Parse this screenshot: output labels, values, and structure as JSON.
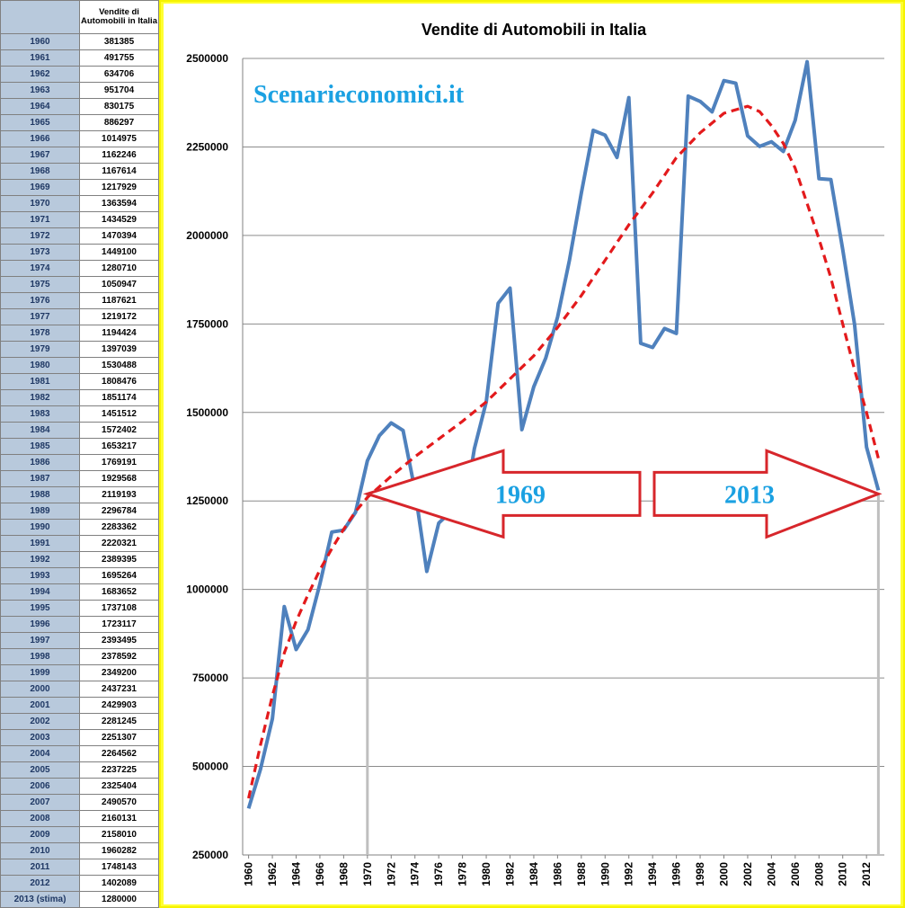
{
  "table": {
    "header": "Vendite di Automobili in Italia",
    "rows": [
      {
        "year": "1960",
        "value": "381385"
      },
      {
        "year": "1961",
        "value": "491755"
      },
      {
        "year": "1962",
        "value": "634706"
      },
      {
        "year": "1963",
        "value": "951704"
      },
      {
        "year": "1964",
        "value": "830175"
      },
      {
        "year": "1965",
        "value": "886297"
      },
      {
        "year": "1966",
        "value": "1014975"
      },
      {
        "year": "1967",
        "value": "1162246"
      },
      {
        "year": "1968",
        "value": "1167614"
      },
      {
        "year": "1969",
        "value": "1217929"
      },
      {
        "year": "1970",
        "value": "1363594"
      },
      {
        "year": "1971",
        "value": "1434529"
      },
      {
        "year": "1972",
        "value": "1470394"
      },
      {
        "year": "1973",
        "value": "1449100"
      },
      {
        "year": "1974",
        "value": "1280710"
      },
      {
        "year": "1975",
        "value": "1050947"
      },
      {
        "year": "1976",
        "value": "1187621"
      },
      {
        "year": "1977",
        "value": "1219172"
      },
      {
        "year": "1978",
        "value": "1194424"
      },
      {
        "year": "1979",
        "value": "1397039"
      },
      {
        "year": "1980",
        "value": "1530488"
      },
      {
        "year": "1981",
        "value": "1808476"
      },
      {
        "year": "1982",
        "value": "1851174"
      },
      {
        "year": "1983",
        "value": "1451512"
      },
      {
        "year": "1984",
        "value": "1572402"
      },
      {
        "year": "1985",
        "value": "1653217"
      },
      {
        "year": "1986",
        "value": "1769191"
      },
      {
        "year": "1987",
        "value": "1929568"
      },
      {
        "year": "1988",
        "value": "2119193"
      },
      {
        "year": "1989",
        "value": "2296784"
      },
      {
        "year": "1990",
        "value": "2283362"
      },
      {
        "year": "1991",
        "value": "2220321"
      },
      {
        "year": "1992",
        "value": "2389395"
      },
      {
        "year": "1993",
        "value": "1695264"
      },
      {
        "year": "1994",
        "value": "1683652"
      },
      {
        "year": "1995",
        "value": "1737108"
      },
      {
        "year": "1996",
        "value": "1723117"
      },
      {
        "year": "1997",
        "value": "2393495"
      },
      {
        "year": "1998",
        "value": "2378592"
      },
      {
        "year": "1999",
        "value": "2349200"
      },
      {
        "year": "2000",
        "value": "2437231"
      },
      {
        "year": "2001",
        "value": "2429903"
      },
      {
        "year": "2002",
        "value": "2281245"
      },
      {
        "year": "2003",
        "value": "2251307"
      },
      {
        "year": "2004",
        "value": "2264562"
      },
      {
        "year": "2005",
        "value": "2237225"
      },
      {
        "year": "2006",
        "value": "2325404"
      },
      {
        "year": "2007",
        "value": "2490570"
      },
      {
        "year": "2008",
        "value": "2160131"
      },
      {
        "year": "2009",
        "value": "2158010"
      },
      {
        "year": "2010",
        "value": "1960282"
      },
      {
        "year": "2011",
        "value": "1748143"
      },
      {
        "year": "2012",
        "value": "1402089"
      },
      {
        "year": "2013 (stima)",
        "value": "1280000"
      }
    ]
  },
  "colors": {
    "series": "#4f81bd",
    "trend": "#e31a1c",
    "arrow": "#d7262b",
    "watermark": "#1ba1e2",
    "frame": "#ffff33",
    "table_year_bg": "#b8c9dc"
  },
  "chart_data": {
    "type": "line",
    "title": "Vendite di Automobili in Italia",
    "xlabel": "",
    "ylabel": "",
    "ylim": [
      250000,
      2500000
    ],
    "yticks": [
      250000,
      500000,
      750000,
      1000000,
      1250000,
      1500000,
      1750000,
      2000000,
      2250000,
      2500000
    ],
    "ytick_labels": [
      "250000",
      "500000",
      "750000",
      "1000000",
      "1250000",
      "1500000",
      "1750000",
      "2000000",
      "2250000",
      "2500000"
    ],
    "xlim": [
      1960,
      2013
    ],
    "xtick_labels": [
      "1960",
      "1962",
      "1964",
      "1966",
      "1968",
      "1970",
      "1972",
      "1974",
      "1976",
      "1978",
      "1980",
      "1982",
      "1984",
      "1986",
      "1988",
      "1990",
      "1992",
      "1994",
      "1996",
      "1998",
      "2000",
      "2002",
      "2004",
      "2006",
      "2008",
      "2010",
      "2012"
    ],
    "grid": true,
    "x": [
      1960,
      1961,
      1962,
      1963,
      1964,
      1965,
      1966,
      1967,
      1968,
      1969,
      1970,
      1971,
      1972,
      1973,
      1974,
      1975,
      1976,
      1977,
      1978,
      1979,
      1980,
      1981,
      1982,
      1983,
      1984,
      1985,
      1986,
      1987,
      1988,
      1989,
      1990,
      1991,
      1992,
      1993,
      1994,
      1995,
      1996,
      1997,
      1998,
      1999,
      2000,
      2001,
      2002,
      2003,
      2004,
      2005,
      2006,
      2007,
      2008,
      2009,
      2010,
      2011,
      2012,
      2013
    ],
    "series": [
      {
        "values": [
          381385,
          491755,
          634706,
          951704,
          830175,
          886297,
          1014975,
          1162246,
          1167614,
          1217929,
          1363594,
          1434529,
          1470394,
          1449100,
          1280710,
          1050947,
          1187621,
          1219172,
          1194424,
          1397039,
          1530488,
          1808476,
          1851174,
          1451512,
          1572402,
          1653217,
          1769191,
          1929568,
          2119193,
          2296784,
          2283362,
          2220321,
          2389395,
          1695264,
          1683652,
          1737108,
          1723117,
          2393495,
          2378592,
          2349200,
          2437231,
          2429903,
          2281245,
          2251307,
          2264562,
          2237225,
          2325404,
          2490570,
          2160131,
          2158010,
          1960282,
          1748143,
          1402089,
          1280000
        ],
        "style": "solid"
      },
      {
        "x": [
          1960,
          1961,
          1962,
          1963,
          1964,
          1965,
          1966,
          1967,
          1968,
          1969,
          1970,
          1972,
          1974,
          1976,
          1978,
          1980,
          1982,
          1984,
          1986,
          1988,
          1990,
          1992,
          1994,
          1996,
          1998,
          2000,
          2002,
          2003,
          2004,
          2005,
          2006,
          2007,
          2008,
          2009,
          2010,
          2011,
          2012,
          2013
        ],
        "values": [
          410000,
          560000,
          700000,
          820000,
          910000,
          985000,
          1055000,
          1115000,
          1170000,
          1220000,
          1260000,
          1320000,
          1375000,
          1425000,
          1475000,
          1530000,
          1595000,
          1660000,
          1740000,
          1830000,
          1930000,
          2030000,
          2120000,
          2220000,
          2290000,
          2345000,
          2365000,
          2350000,
          2310000,
          2260000,
          2190000,
          2090000,
          1990000,
          1880000,
          1750000,
          1620000,
          1500000,
          1370000
        ],
        "style": "dashed"
      }
    ],
    "annotations": {
      "watermark": "Scenarieconomici.it",
      "left_arrow_label": "1969",
      "right_arrow_label": "2013",
      "reference_years": [
        1970,
        2013
      ],
      "reference_value": 1270000
    }
  }
}
